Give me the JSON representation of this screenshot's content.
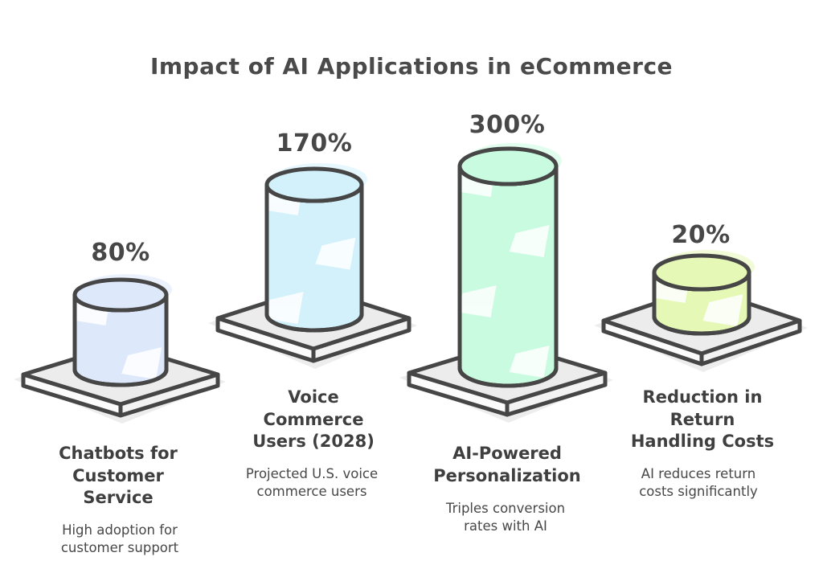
{
  "title": "Impact of AI Applications in eCommerce",
  "colors": {
    "outline": "#464646",
    "title_text": "#4a4a4a",
    "heading_text": "#3f3f3f",
    "body_text": "#474747",
    "background": "#ffffff",
    "platform_top": "#ececec",
    "platform_side_left": "#fbfbfb",
    "platform_side_right": "#f3f3f3",
    "shadow": "#e4e4e4"
  },
  "items": [
    {
      "slug": "chatbots-for-customer-service",
      "pct": "80%",
      "value": 80,
      "fill": "#dde8fb",
      "heading_lines": [
        "Chatbots for",
        "Customer",
        "Service"
      ],
      "description_lines": [
        "High adoption for",
        "customer support"
      ]
    },
    {
      "slug": "voice-commerce-users-2028",
      "pct": "170%",
      "value": 170,
      "fill": "#d2f1fb",
      "heading_lines": [
        "Voice",
        "Commerce",
        "Users (2028)"
      ],
      "description_lines": [
        "Projected U.S. voice",
        "commerce users"
      ]
    },
    {
      "slug": "ai-powered-personalization",
      "pct": "300%",
      "value": 300,
      "fill": "#c8fbdf",
      "heading_lines": [
        "AI-Powered",
        "Personalization"
      ],
      "description_lines": [
        "Triples conversion",
        "rates with AI"
      ]
    },
    {
      "slug": "reduction-in-return-handling-costs",
      "pct": "20%",
      "value": 20,
      "fill": "#e5f8b6",
      "heading_lines": [
        "Reduction in",
        "Return",
        "Handling Costs"
      ],
      "description_lines": [
        "AI reduces return",
        "costs significantly"
      ]
    }
  ],
  "chart_data": {
    "type": "bar",
    "title": "Impact of AI Applications in eCommerce",
    "categories": [
      "Chatbots for Customer Service",
      "Voice Commerce Users (2028)",
      "AI-Powered Personalization",
      "Reduction in Return Handling Costs"
    ],
    "values": [
      80,
      170,
      300,
      20
    ],
    "unit": "%",
    "value_labels": [
      "80%",
      "170%",
      "300%",
      "20%"
    ],
    "annotations": [
      "High adoption for customer support",
      "Projected U.S. voice commerce users",
      "Triples conversion rates with AI",
      "AI reduces return costs significantly"
    ],
    "bar_colors": [
      "#dde8fb",
      "#d2f1fb",
      "#c8fbdf",
      "#e5f8b6"
    ],
    "style": "hand-drawn isometric cylinders on square platforms",
    "legend": "none",
    "grid": false,
    "axes": "none"
  }
}
